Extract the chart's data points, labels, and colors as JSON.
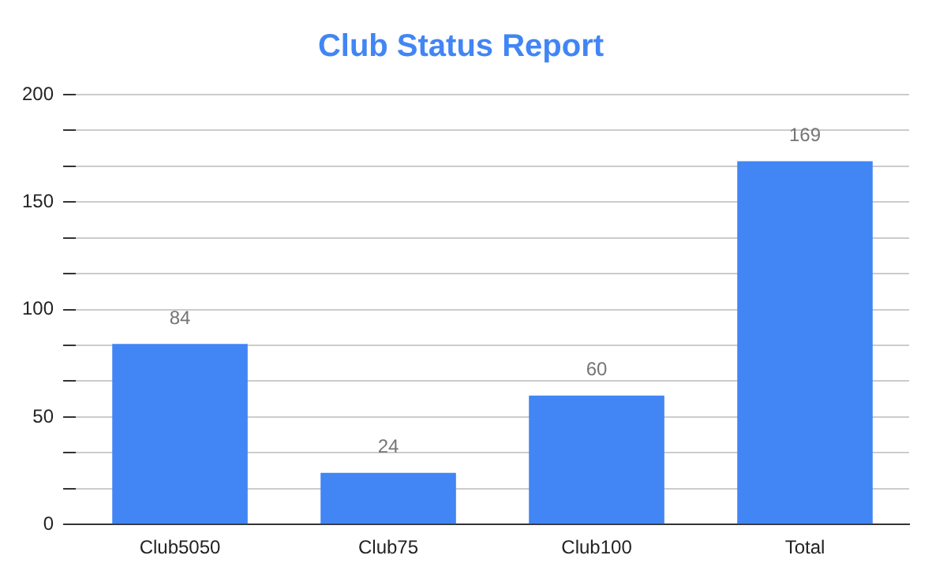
{
  "chart_data": {
    "type": "bar",
    "title": "Club Status Report",
    "categories": [
      "Club5050",
      "Club75",
      "Club100",
      "Total"
    ],
    "values": [
      84,
      24,
      60,
      169
    ],
    "color": "#4285f4",
    "ylim": [
      0,
      200
    ],
    "yticks": [
      0,
      {
        "value": 16.67,
        "label": null
      },
      {
        "value": 33.33,
        "label": null
      },
      50,
      {
        "value": 66.67,
        "label": null
      },
      {
        "value": 83.33,
        "label": null
      },
      100,
      {
        "value": 116.67,
        "label": null
      },
      {
        "value": 133.33,
        "label": null
      },
      150,
      {
        "value": 166.67,
        "label": null
      },
      {
        "value": 183.33,
        "label": null
      },
      200
    ],
    "grid": "y",
    "data_labels": true
  }
}
